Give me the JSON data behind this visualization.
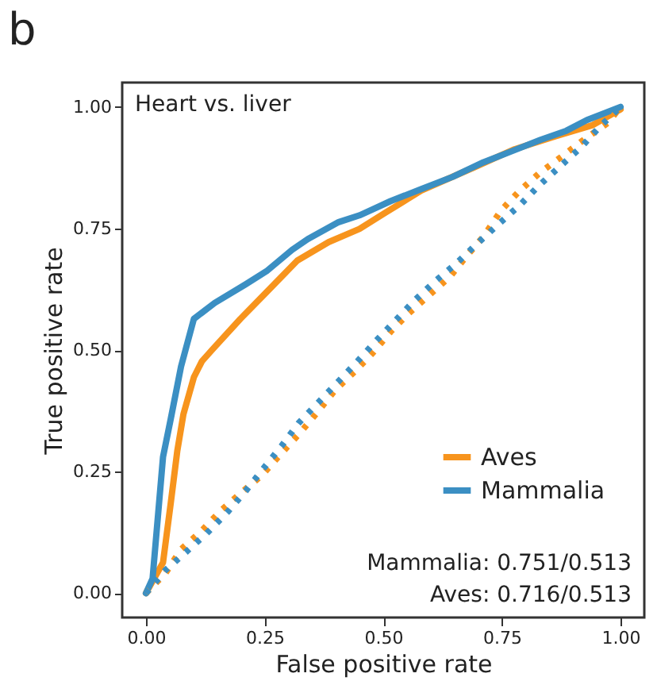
{
  "chart_data": {
    "type": "line",
    "title": "b",
    "xlabel": "False positive rate",
    "ylabel": "True positive rate",
    "annotations": [
      "Heart vs. liver",
      "Mammalia: 0.751/0.513",
      "Aves: 0.716/0.513"
    ],
    "xlim": [
      -0.05,
      1.05
    ],
    "ylim": [
      -0.05,
      1.05
    ],
    "xticks": [
      {
        "value": 0,
        "label": "0.00"
      },
      {
        "value": 0.25,
        "label": "0.25"
      },
      {
        "value": 0.5,
        "label": "0.50"
      },
      {
        "value": 0.75,
        "label": "0.75"
      },
      {
        "value": 1,
        "label": "1.00"
      }
    ],
    "yticks": [
      {
        "value": 0,
        "label": "0.00"
      },
      {
        "value": 0.25,
        "label": "0.25"
      },
      {
        "value": 0.5,
        "label": "0.50"
      },
      {
        "value": 0.75,
        "label": "0.75"
      },
      {
        "value": 1,
        "label": "1.00"
      }
    ],
    "grid": false,
    "legend": "bottom right",
    "marker": "none",
    "series": [
      {
        "name": "Aves",
        "color": "#f7941d",
        "line_style": "solid",
        "x": [
          0,
          0.036,
          0.052,
          0.066,
          0.079,
          0.101,
          0.118,
          0.14,
          0.199,
          0.254,
          0.319,
          0.385,
          0.45,
          0.504,
          0.58,
          0.69,
          0.777,
          0.864,
          0.94,
          1
        ],
        "values": [
          0,
          0.063,
          0.183,
          0.292,
          0.368,
          0.444,
          0.477,
          0.501,
          0.564,
          0.619,
          0.684,
          0.722,
          0.749,
          0.782,
          0.828,
          0.875,
          0.913,
          0.94,
          0.962,
          0.995
        ]
      },
      {
        "name": "Mammalia",
        "color": "#3b8fc3",
        "line_style": "solid",
        "x": [
          0,
          0.014,
          0.036,
          0.052,
          0.074,
          0.101,
          0.145,
          0.21,
          0.254,
          0.308,
          0.341,
          0.406,
          0.45,
          0.515,
          0.58,
          0.646,
          0.711,
          0.766,
          0.831,
          0.886,
          0.929,
          1
        ],
        "values": [
          0,
          0.03,
          0.28,
          0.357,
          0.466,
          0.564,
          0.597,
          0.635,
          0.662,
          0.706,
          0.728,
          0.763,
          0.777,
          0.806,
          0.831,
          0.856,
          0.886,
          0.907,
          0.932,
          0.951,
          0.973,
          1
        ]
      },
      {
        "color": "#f7941d",
        "line_style": "dotted",
        "x": [
          0,
          0.041,
          0.074,
          0.118,
          0.158,
          0.199,
          0.245,
          0.284,
          0.325,
          0.363,
          0.398,
          0.439,
          0.477,
          0.515,
          0.553,
          0.597,
          0.641,
          0.677,
          0.711,
          0.749,
          0.788,
          0.829,
          0.875,
          0.918,
          0.973,
          1
        ],
        "values": [
          0,
          0.041,
          0.09,
          0.129,
          0.17,
          0.205,
          0.243,
          0.286,
          0.33,
          0.374,
          0.417,
          0.455,
          0.493,
          0.537,
          0.575,
          0.613,
          0.651,
          0.695,
          0.733,
          0.788,
          0.828,
          0.864,
          0.897,
          0.929,
          0.967,
          1
        ]
      },
      {
        "color": "#3b8fc3",
        "line_style": "dotted",
        "x": [
          0,
          0.041,
          0.085,
          0.128,
          0.172,
          0.21,
          0.248,
          0.286,
          0.321,
          0.363,
          0.404,
          0.444,
          0.485,
          0.524,
          0.566,
          0.609,
          0.655,
          0.698,
          0.742,
          0.788,
          0.829,
          0.873,
          0.918,
          0.956,
          1
        ],
        "values": [
          0,
          0.047,
          0.085,
          0.123,
          0.167,
          0.21,
          0.257,
          0.303,
          0.349,
          0.392,
          0.434,
          0.475,
          0.519,
          0.559,
          0.602,
          0.641,
          0.679,
          0.719,
          0.758,
          0.798,
          0.839,
          0.878,
          0.918,
          0.959,
          1
        ]
      }
    ]
  }
}
